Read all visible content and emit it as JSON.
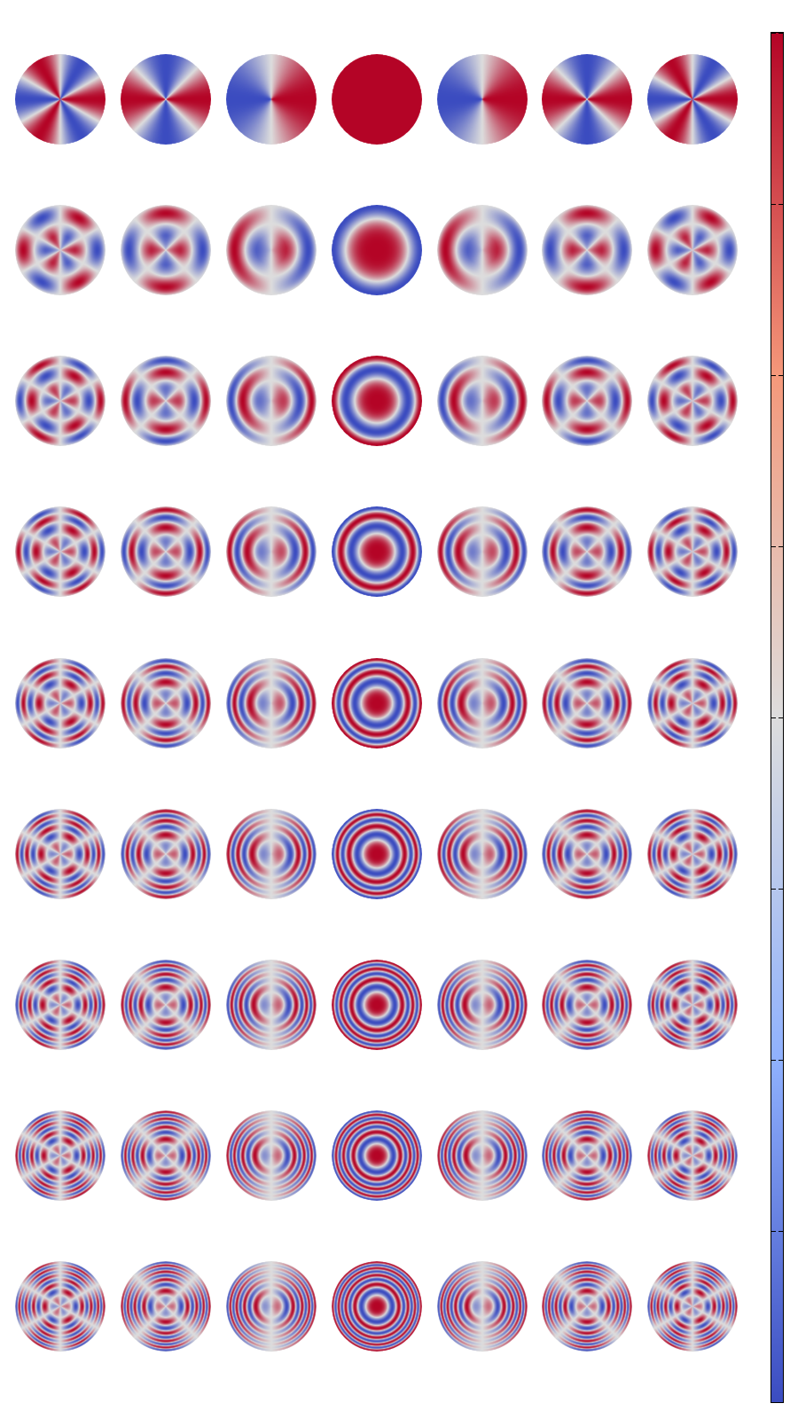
{
  "figure": {
    "description_free": true,
    "layout": {
      "rows": 9,
      "cols": 7
    },
    "azimuthal_orders_by_column": [
      -3,
      -2,
      -1,
      0,
      1,
      2,
      3
    ],
    "radial_orders_by_row": [
      0,
      1,
      2,
      3,
      4,
      5,
      6,
      7,
      8
    ],
    "colormap": {
      "name": "coolwarm",
      "low": "#3b4cc0",
      "mid": "#dddddd",
      "high": "#b40426"
    },
    "colorbar": {
      "orientation": "vertical",
      "placement": "right",
      "tick_count": 9,
      "tick_labels_shown": false
    }
  }
}
